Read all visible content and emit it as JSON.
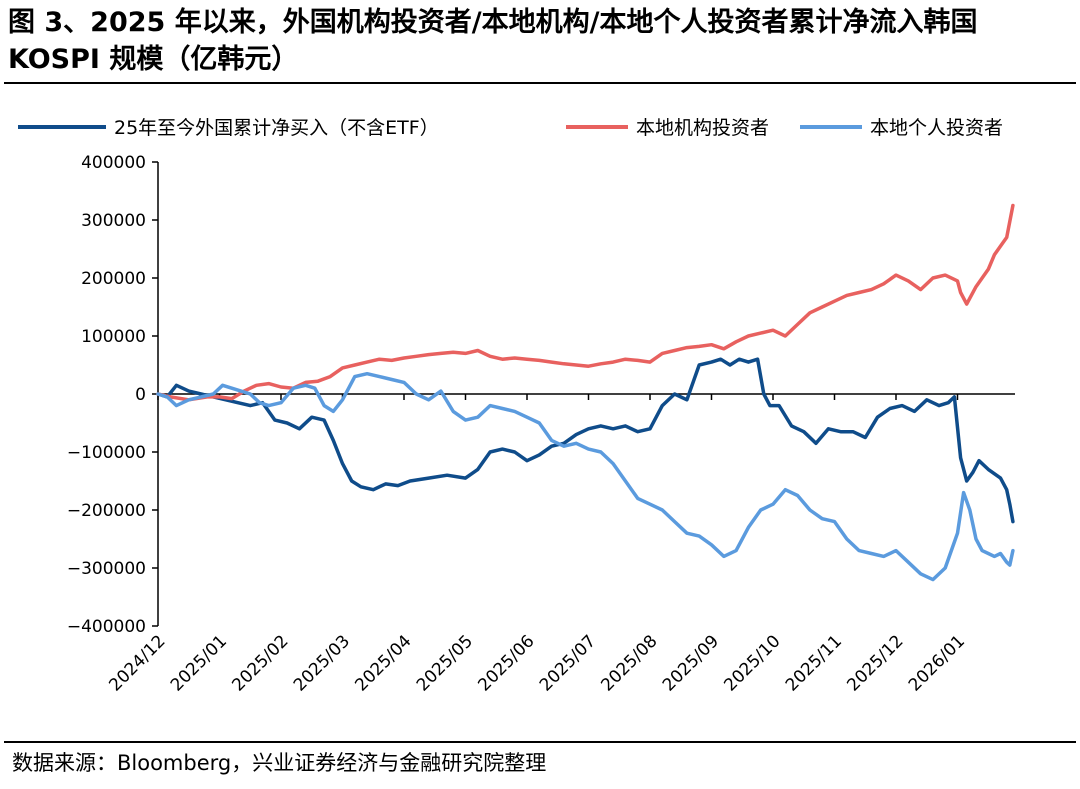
{
  "title": "图 3、2025 年以来，外国机构投资者/本地机构/本地个人投资者累计净流入韩国 KOSPI 规模（亿韩元）",
  "source": "数据来源：Bloomberg，兴业证券经济与金融研究院整理",
  "chart_data": {
    "type": "line",
    "title": "图 3、2025 年以来，外国机构投资者/本地机构/本地个人投资者累计净流入韩国 KOSPI 规模（亿韩元）",
    "xlabel": "",
    "ylabel": "",
    "ylim": [
      -400000,
      400000
    ],
    "yticks": [
      400000,
      300000,
      200000,
      100000,
      0,
      -100000,
      -200000,
      -300000,
      -400000
    ],
    "ytick_labels": [
      "400000",
      "300000",
      "200000",
      "100000",
      "0",
      "−100000",
      "−200000",
      "−300000",
      "−400000"
    ],
    "xticks": [
      "2024/12",
      "2025/01",
      "2025/02",
      "2025/03",
      "2025/04",
      "2025/05",
      "2025/06",
      "2025/07",
      "2025/08",
      "2025/09",
      "2025/10",
      "2025/11",
      "2025/12",
      "2026/01"
    ],
    "xlim": [
      0,
      14
    ],
    "legend_position": "top",
    "series": [
      {
        "name": "25年至今外国累计净买入（不含ETF）",
        "color": "#0f4c8a",
        "x": [
          0,
          0.15,
          0.3,
          0.5,
          0.7,
          0.9,
          1.1,
          1.3,
          1.5,
          1.7,
          1.9,
          2.1,
          2.3,
          2.5,
          2.7,
          2.85,
          3.0,
          3.15,
          3.3,
          3.5,
          3.7,
          3.9,
          4.1,
          4.4,
          4.7,
          5.0,
          5.2,
          5.4,
          5.6,
          5.8,
          6.0,
          6.2,
          6.4,
          6.6,
          6.8,
          7.0,
          7.2,
          7.4,
          7.6,
          7.8,
          8.0,
          8.2,
          8.4,
          8.6,
          8.8,
          9.0,
          9.15,
          9.3,
          9.45,
          9.6,
          9.75,
          9.85,
          9.95,
          10.1,
          10.3,
          10.5,
          10.7,
          10.9,
          11.1,
          11.3,
          11.5,
          11.7,
          11.9,
          12.1,
          12.3,
          12.5,
          12.7,
          12.85,
          12.95,
          13.05,
          13.15,
          13.25,
          13.35,
          13.5,
          13.7,
          13.8,
          13.85,
          13.9
        ],
        "values": [
          0,
          -5000,
          15000,
          5000,
          0,
          -5000,
          -10000,
          -15000,
          -20000,
          -15000,
          -45000,
          -50000,
          -60000,
          -40000,
          -45000,
          -80000,
          -120000,
          -150000,
          -160000,
          -165000,
          -155000,
          -158000,
          -150000,
          -145000,
          -140000,
          -145000,
          -130000,
          -100000,
          -95000,
          -100000,
          -115000,
          -105000,
          -90000,
          -85000,
          -70000,
          -60000,
          -55000,
          -60000,
          -55000,
          -65000,
          -60000,
          -20000,
          0,
          -10000,
          50000,
          55000,
          60000,
          50000,
          60000,
          55000,
          60000,
          0,
          -20000,
          -20000,
          -55000,
          -65000,
          -85000,
          -60000,
          -65000,
          -65000,
          -75000,
          -40000,
          -25000,
          -20000,
          -30000,
          -10000,
          -20000,
          -15000,
          -5000,
          -110000,
          -150000,
          -135000,
          -115000,
          -130000,
          -145000,
          -165000,
          -190000,
          -220000
        ]
      },
      {
        "name": "本地机构投资者",
        "color": "#e8615f",
        "x": [
          0,
          0.2,
          0.5,
          0.8,
          1.0,
          1.2,
          1.4,
          1.6,
          1.8,
          2.0,
          2.2,
          2.4,
          2.6,
          2.8,
          3.0,
          3.2,
          3.4,
          3.6,
          3.8,
          4.0,
          4.2,
          4.4,
          4.6,
          4.8,
          5.0,
          5.2,
          5.4,
          5.6,
          5.8,
          6.0,
          6.2,
          6.4,
          6.6,
          6.8,
          7.0,
          7.2,
          7.4,
          7.6,
          7.8,
          8.0,
          8.2,
          8.4,
          8.6,
          8.8,
          9.0,
          9.2,
          9.4,
          9.6,
          9.8,
          10.0,
          10.2,
          10.4,
          10.6,
          10.8,
          11.0,
          11.2,
          11.4,
          11.6,
          11.8,
          12.0,
          12.2,
          12.4,
          12.6,
          12.8,
          13.0,
          13.05,
          13.15,
          13.3,
          13.5,
          13.6,
          13.7,
          13.8,
          13.9
        ],
        "values": [
          0,
          -5000,
          -10000,
          -5000,
          -5000,
          -8000,
          5000,
          15000,
          18000,
          12000,
          10000,
          20000,
          22000,
          30000,
          45000,
          50000,
          55000,
          60000,
          58000,
          62000,
          65000,
          68000,
          70000,
          72000,
          70000,
          75000,
          65000,
          60000,
          62000,
          60000,
          58000,
          55000,
          52000,
          50000,
          48000,
          52000,
          55000,
          60000,
          58000,
          55000,
          70000,
          75000,
          80000,
          82000,
          85000,
          78000,
          90000,
          100000,
          105000,
          110000,
          100000,
          120000,
          140000,
          150000,
          160000,
          170000,
          175000,
          180000,
          190000,
          205000,
          195000,
          180000,
          200000,
          205000,
          195000,
          175000,
          155000,
          185000,
          215000,
          240000,
          255000,
          270000,
          325000
        ]
      },
      {
        "name": "本地个人投资者",
        "color": "#5b9bde",
        "x": [
          0,
          0.15,
          0.3,
          0.5,
          0.7,
          0.9,
          1.05,
          1.2,
          1.35,
          1.5,
          1.65,
          1.8,
          2.0,
          2.2,
          2.4,
          2.55,
          2.7,
          2.85,
          3.0,
          3.2,
          3.4,
          3.6,
          3.8,
          4.0,
          4.2,
          4.4,
          4.6,
          4.8,
          5.0,
          5.2,
          5.4,
          5.6,
          5.8,
          6.0,
          6.2,
          6.4,
          6.6,
          6.8,
          7.0,
          7.2,
          7.4,
          7.6,
          7.8,
          8.0,
          8.2,
          8.4,
          8.6,
          8.8,
          9.0,
          9.2,
          9.4,
          9.6,
          9.8,
          10.0,
          10.2,
          10.4,
          10.6,
          10.8,
          11.0,
          11.2,
          11.4,
          11.6,
          11.8,
          12.0,
          12.2,
          12.4,
          12.6,
          12.8,
          13.0,
          13.1,
          13.2,
          13.3,
          13.4,
          13.5,
          13.6,
          13.7,
          13.8,
          13.85,
          13.9
        ],
        "values": [
          0,
          -5000,
          -20000,
          -10000,
          -5000,
          0,
          15000,
          10000,
          5000,
          0,
          -15000,
          -20000,
          -15000,
          10000,
          15000,
          10000,
          -20000,
          -30000,
          -10000,
          30000,
          35000,
          30000,
          25000,
          20000,
          0,
          -10000,
          5000,
          -30000,
          -45000,
          -40000,
          -20000,
          -25000,
          -30000,
          -40000,
          -50000,
          -80000,
          -90000,
          -85000,
          -95000,
          -100000,
          -120000,
          -150000,
          -180000,
          -190000,
          -200000,
          -220000,
          -240000,
          -245000,
          -260000,
          -280000,
          -270000,
          -230000,
          -200000,
          -190000,
          -165000,
          -175000,
          -200000,
          -215000,
          -220000,
          -250000,
          -270000,
          -275000,
          -280000,
          -270000,
          -290000,
          -310000,
          -320000,
          -300000,
          -240000,
          -170000,
          -200000,
          -250000,
          -270000,
          -275000,
          -280000,
          -275000,
          -290000,
          -295000,
          -270000
        ]
      }
    ]
  }
}
